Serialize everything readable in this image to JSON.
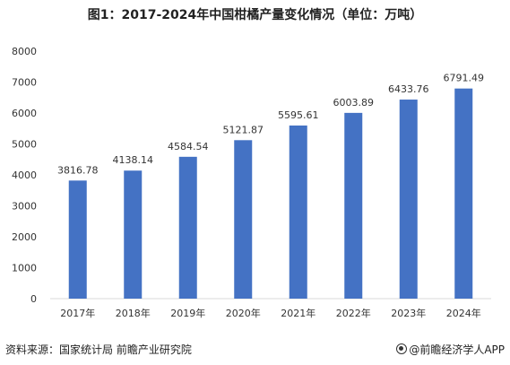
{
  "title": "图1：2017-2024年中国柑橘产量变化情况（单位：万吨）",
  "source": "资料来源：国家统计局  前瞻产业研究院",
  "brand": "@前瞻经济学人APP",
  "colors": {
    "bar": "#4472c4",
    "axis": "#d9d9d9",
    "text": "#333333"
  },
  "chart_data": {
    "type": "bar",
    "title": "图1：2017-2024年中国柑橘产量变化情况（单位：万吨）",
    "xlabel": "",
    "ylabel": "",
    "categories": [
      "2017年",
      "2018年",
      "2019年",
      "2020年",
      "2021年",
      "2022年",
      "2023年",
      "2024年"
    ],
    "values": [
      3816.78,
      4138.14,
      4584.54,
      5121.87,
      5595.61,
      6003.89,
      6433.76,
      6791.49
    ],
    "value_labels": [
      "3816.78",
      "4138.14",
      "4584.54",
      "5121.87",
      "5595.61",
      "6003.89",
      "6433.76",
      "6791.49"
    ],
    "ylim": [
      0,
      8000
    ],
    "yticks": [
      0,
      1000,
      2000,
      3000,
      4000,
      5000,
      6000,
      7000,
      8000
    ],
    "grid": false,
    "legend": "none"
  }
}
